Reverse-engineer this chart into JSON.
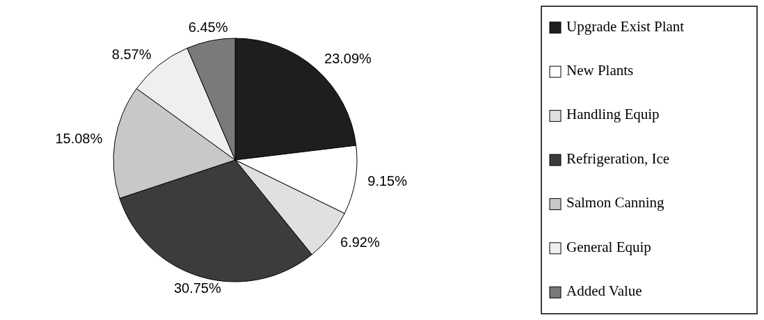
{
  "chart_data": {
    "type": "pie",
    "categories": [
      "Upgrade Exist Plant",
      "New Plants",
      "Handling Equip",
      "Refrigeration, Ice",
      "Salmon Canning",
      "General Equip",
      "Added Value"
    ],
    "values": [
      23.09,
      9.15,
      6.92,
      30.75,
      15.08,
      8.57,
      6.45
    ],
    "colors": [
      "#1e1e1e",
      "#ffffff",
      "#e0e0e0",
      "#3c3c3c",
      "#c8c8c8",
      "#efefef",
      "#7a7a7a"
    ],
    "value_labels": [
      "23.09%",
      "9.15%",
      "6.92%",
      "30.75%",
      "15.08%",
      "8.57%",
      "6.45%"
    ],
    "legend": "right"
  }
}
